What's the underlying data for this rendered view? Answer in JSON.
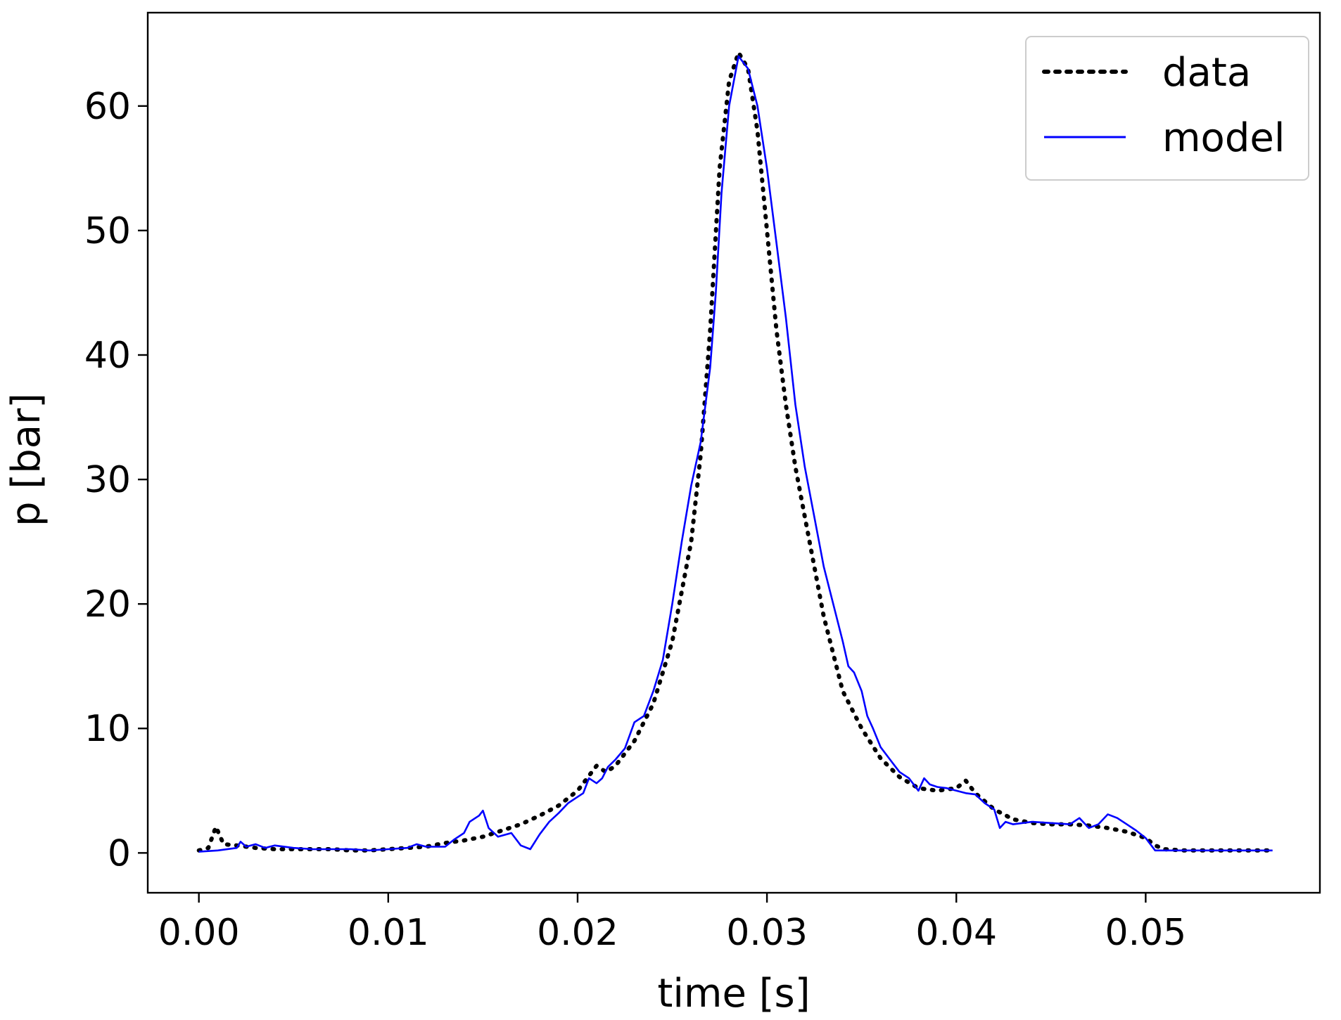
{
  "chart_data": {
    "type": "line",
    "title": "",
    "xlabel": "time [s]",
    "ylabel": "p [bar]",
    "xlim": [
      -0.0027,
      0.0592
    ],
    "ylim": [
      -3.2,
      67.5
    ],
    "xticks": [
      0.0,
      0.01,
      0.02,
      0.03,
      0.04,
      0.05
    ],
    "xtick_labels": [
      "0.00",
      "0.01",
      "0.02",
      "0.03",
      "0.04",
      "0.05"
    ],
    "yticks": [
      0,
      10,
      20,
      30,
      40,
      50,
      60
    ],
    "ytick_labels": [
      "0",
      "10",
      "20",
      "30",
      "40",
      "50",
      "60"
    ],
    "grid": false,
    "legend_position": "top-right",
    "series": [
      {
        "name": "data",
        "style": "dotted",
        "color": "#000000",
        "x": [
          0.0,
          0.0005,
          0.0009,
          0.0013,
          0.002,
          0.003,
          0.004,
          0.005,
          0.006,
          0.007,
          0.008,
          0.009,
          0.01,
          0.011,
          0.012,
          0.013,
          0.014,
          0.015,
          0.016,
          0.017,
          0.018,
          0.019,
          0.02,
          0.0205,
          0.021,
          0.0215,
          0.022,
          0.023,
          0.024,
          0.025,
          0.026,
          0.0265,
          0.027,
          0.0275,
          0.028,
          0.0285,
          0.029,
          0.0295,
          0.03,
          0.0305,
          0.031,
          0.0315,
          0.032,
          0.0325,
          0.033,
          0.0335,
          0.034,
          0.035,
          0.036,
          0.037,
          0.038,
          0.039,
          0.04,
          0.0405,
          0.041,
          0.042,
          0.043,
          0.044,
          0.045,
          0.046,
          0.047,
          0.048,
          0.049,
          0.05,
          0.0505,
          0.051,
          0.052,
          0.053,
          0.054,
          0.055,
          0.056,
          0.0567
        ],
        "y": [
          0.2,
          0.4,
          2.1,
          0.7,
          0.6,
          0.4,
          0.3,
          0.3,
          0.3,
          0.3,
          0.2,
          0.2,
          0.3,
          0.4,
          0.5,
          0.8,
          1.0,
          1.3,
          1.8,
          2.3,
          3.0,
          3.8,
          5.0,
          6.0,
          7.0,
          6.5,
          7.0,
          9.0,
          12.0,
          17.0,
          25.0,
          32.0,
          42.0,
          55.0,
          62.0,
          64.3,
          63.0,
          58.0,
          50.0,
          42.0,
          36.0,
          31.0,
          27.0,
          23.0,
          19.0,
          16.0,
          13.0,
          10.0,
          7.6,
          6.1,
          5.2,
          5.0,
          5.2,
          5.8,
          4.8,
          3.5,
          2.7,
          2.4,
          2.3,
          2.3,
          2.2,
          2.0,
          1.7,
          1.2,
          0.6,
          0.3,
          0.2,
          0.2,
          0.2,
          0.2,
          0.2,
          0.2
        ]
      },
      {
        "name": "model",
        "style": "solid",
        "color": "#0000ff",
        "x": [
          0.0,
          0.001,
          0.002,
          0.0022,
          0.0025,
          0.003,
          0.0035,
          0.004,
          0.005,
          0.006,
          0.007,
          0.008,
          0.009,
          0.01,
          0.011,
          0.0115,
          0.012,
          0.013,
          0.0135,
          0.014,
          0.0143,
          0.0148,
          0.015,
          0.0153,
          0.0158,
          0.0165,
          0.017,
          0.0175,
          0.018,
          0.0185,
          0.019,
          0.0195,
          0.02,
          0.0203,
          0.0206,
          0.021,
          0.0213,
          0.0216,
          0.022,
          0.0225,
          0.023,
          0.0235,
          0.024,
          0.0245,
          0.025,
          0.0255,
          0.026,
          0.0265,
          0.027,
          0.0273,
          0.0276,
          0.028,
          0.0285,
          0.029,
          0.0295,
          0.03,
          0.0305,
          0.031,
          0.0315,
          0.032,
          0.0325,
          0.033,
          0.0335,
          0.034,
          0.0343,
          0.0346,
          0.035,
          0.0353,
          0.0356,
          0.036,
          0.0365,
          0.037,
          0.0375,
          0.038,
          0.0383,
          0.0386,
          0.039,
          0.0395,
          0.04,
          0.0405,
          0.041,
          0.0415,
          0.042,
          0.0423,
          0.0426,
          0.043,
          0.044,
          0.045,
          0.046,
          0.0465,
          0.047,
          0.0475,
          0.048,
          0.0485,
          0.049,
          0.0495,
          0.05,
          0.0505,
          0.051,
          0.052,
          0.053,
          0.054,
          0.055,
          0.056,
          0.0567
        ],
        "y": [
          0.1,
          0.2,
          0.4,
          0.9,
          0.5,
          0.7,
          0.4,
          0.6,
          0.4,
          0.3,
          0.3,
          0.3,
          0.2,
          0.3,
          0.4,
          0.7,
          0.5,
          0.5,
          1.1,
          1.6,
          2.5,
          3.0,
          3.4,
          2.0,
          1.3,
          1.6,
          0.6,
          0.3,
          1.5,
          2.5,
          3.2,
          4.0,
          4.5,
          4.8,
          6.0,
          5.6,
          6.0,
          6.9,
          7.5,
          8.4,
          10.5,
          11.0,
          13.0,
          15.5,
          20.0,
          25.0,
          29.5,
          33.0,
          39.0,
          45.0,
          53.0,
          60.0,
          64.0,
          63.0,
          60.0,
          55.0,
          49.0,
          43.0,
          36.0,
          31.0,
          27.0,
          23.0,
          20.0,
          17.0,
          15.0,
          14.5,
          13.0,
          11.0,
          10.0,
          8.5,
          7.5,
          6.5,
          6.0,
          5.0,
          6.0,
          5.5,
          5.3,
          5.2,
          5.0,
          4.8,
          4.7,
          4.0,
          3.5,
          2.0,
          2.5,
          2.3,
          2.5,
          2.4,
          2.3,
          2.8,
          2.0,
          2.3,
          3.1,
          2.8,
          2.3,
          1.8,
          1.2,
          0.2,
          0.2,
          0.2,
          0.2,
          0.2,
          0.2,
          0.2,
          0.2
        ]
      }
    ]
  }
}
